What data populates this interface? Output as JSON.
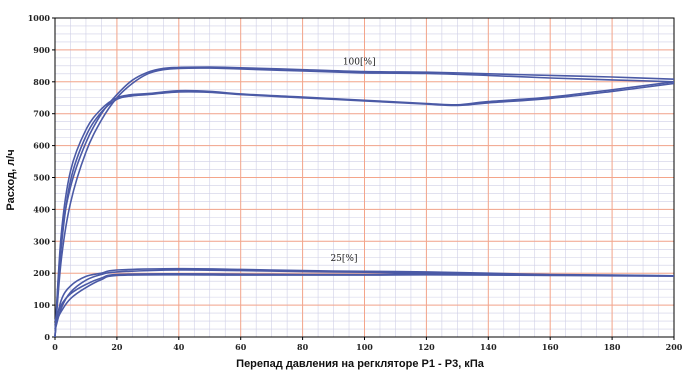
{
  "chart_data": {
    "type": "line",
    "title": "",
    "xlabel": "Перепад давления на регкляторе Р1 - Р3, кПа",
    "ylabel": "Расход, л/ч",
    "xlim": [
      0,
      200
    ],
    "ylim": [
      0,
      1000
    ],
    "x_ticks": [
      0,
      20,
      40,
      60,
      80,
      100,
      120,
      140,
      160,
      180,
      200
    ],
    "y_ticks": [
      0,
      100,
      200,
      300,
      400,
      500,
      600,
      700,
      800,
      900,
      1000
    ],
    "grid": true,
    "colors": {
      "major_grid": "#f4a58a",
      "minor_grid": "#cfcfe6",
      "line": "#4b5aa6",
      "plot_border": "#000000"
    },
    "annotations": [
      {
        "text": "100[%]",
        "x": 93,
        "y": 855
      },
      {
        "text": "25[%]",
        "x": 89,
        "y": 238
      }
    ],
    "series": [
      {
        "group": "100[%]",
        "x": [
          0,
          2,
          5,
          10,
          15,
          20,
          25,
          30,
          35,
          40,
          50,
          60,
          80,
          100,
          120,
          140,
          160,
          180,
          200
        ],
        "y": [
          0,
          300,
          470,
          610,
          700,
          760,
          805,
          830,
          842,
          845,
          846,
          844,
          838,
          832,
          830,
          825,
          820,
          815,
          808
        ]
      },
      {
        "group": "100[%]",
        "x": [
          0,
          2,
          5,
          10,
          15,
          20,
          25,
          30,
          35,
          40,
          50,
          60,
          80,
          100,
          120,
          140,
          160,
          180,
          200
        ],
        "y": [
          0,
          240,
          420,
          580,
          680,
          750,
          795,
          825,
          838,
          842,
          843,
          840,
          834,
          828,
          826,
          820,
          812,
          806,
          800
        ]
      },
      {
        "group": "100[%]",
        "x": [
          0,
          2,
          5,
          10,
          15,
          20,
          25,
          30,
          40,
          50,
          60,
          80,
          100,
          120,
          130,
          140,
          160,
          180,
          200
        ],
        "y": [
          0,
          320,
          520,
          650,
          715,
          750,
          760,
          763,
          772,
          770,
          762,
          752,
          742,
          732,
          728,
          738,
          752,
          775,
          800
        ]
      },
      {
        "group": "100[%]",
        "x": [
          0,
          2,
          5,
          10,
          15,
          20,
          25,
          30,
          40,
          50,
          60,
          80,
          100,
          120,
          130,
          140,
          160,
          180,
          200
        ],
        "y": [
          0,
          280,
          490,
          630,
          705,
          745,
          756,
          760,
          768,
          767,
          760,
          750,
          740,
          730,
          726,
          734,
          748,
          770,
          795
        ]
      },
      {
        "group": "25[%]",
        "x": [
          0,
          2,
          5,
          10,
          15,
          20,
          40,
          60,
          80,
          100,
          120,
          140,
          160,
          180,
          200
        ],
        "y": [
          25,
          115,
          160,
          190,
          200,
          210,
          214,
          212,
          208,
          206,
          204,
          200,
          196,
          194,
          192
        ]
      },
      {
        "group": "25[%]",
        "x": [
          0,
          2,
          5,
          10,
          15,
          20,
          40,
          60,
          80,
          100,
          120,
          140,
          160,
          180,
          200
        ],
        "y": [
          20,
          90,
          140,
          178,
          196,
          204,
          210,
          208,
          205,
          203,
          200,
          198,
          195,
          193,
          191
        ]
      },
      {
        "group": "25[%]",
        "x": [
          0,
          2,
          5,
          10,
          15,
          20,
          40,
          60,
          80,
          100,
          120,
          140,
          160,
          180,
          200
        ],
        "y": [
          50,
          100,
          135,
          165,
          185,
          196,
          198,
          197,
          196,
          196,
          197,
          196,
          194,
          193,
          192
        ]
      },
      {
        "group": "25[%]",
        "x": [
          0,
          2,
          5,
          10,
          15,
          20,
          40,
          60,
          80,
          100,
          120,
          140,
          160,
          180,
          200
        ],
        "y": [
          40,
          80,
          120,
          155,
          180,
          193,
          195,
          194,
          194,
          194,
          195,
          194,
          193,
          192,
          191
        ]
      }
    ]
  }
}
